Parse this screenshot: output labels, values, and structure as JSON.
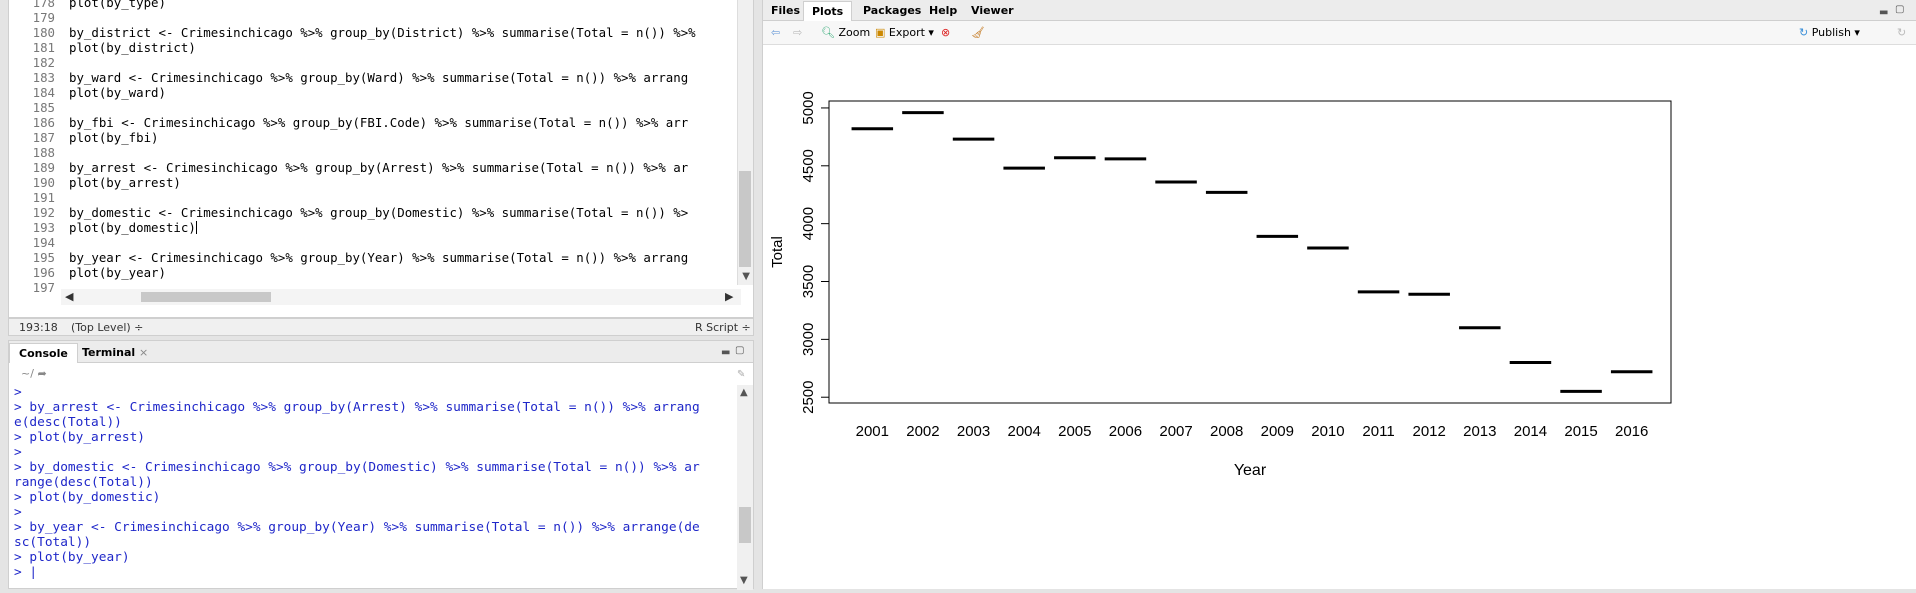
{
  "editor": {
    "line_numbers": [
      "178",
      "179",
      "180",
      "181",
      "182",
      "183",
      "184",
      "185",
      "186",
      "187",
      "188",
      "189",
      "190",
      "191",
      "192",
      "193",
      "194",
      "195",
      "196",
      "197"
    ],
    "lines": [
      "plot(by_type)",
      "",
      "by_district <- Crimesinchicago %>% group_by(District) %>% summarise(Total = n()) %>%",
      "plot(by_district)",
      "",
      "by_ward <- Crimesinchicago %>% group_by(Ward) %>% summarise(Total = n()) %>% arrang",
      "plot(by_ward)",
      "",
      "by_fbi <- Crimesinchicago %>% group_by(FBI.Code) %>% summarise(Total = n()) %>% arr",
      "plot(by_fbi)",
      "",
      "by_arrest <- Crimesinchicago %>% group_by(Arrest) %>% summarise(Total = n()) %>% ar",
      "plot(by_arrest)",
      "",
      "by_domestic <- Crimesinchicago %>% group_by(Domestic) %>% summarise(Total = n()) %>",
      "plot(by_domestic)",
      "",
      "by_year <- Crimesinchicago %>% group_by(Year) %>% summarise(Total = n()) %>% arrang",
      "plot(by_year)",
      ""
    ],
    "status_position": "193:18",
    "status_scope": "(Top Level) ÷",
    "status_filetype": "R Script ÷"
  },
  "console": {
    "tabs": [
      "Console",
      "Terminal"
    ],
    "path": "~/",
    "lines": [
      ">",
      "> by_arrest <- Crimesinchicago %>% group_by(Arrest) %>% summarise(Total = n()) %>% arrang",
      "e(desc(Total))",
      "> plot(by_arrest)",
      ">",
      "> by_domestic <- Crimesinchicago %>% group_by(Domestic) %>% summarise(Total = n()) %>% ar",
      "range(desc(Total))",
      "> plot(by_domestic)",
      ">",
      "> by_year <- Crimesinchicago %>% group_by(Year) %>% summarise(Total = n()) %>% arrange(de",
      "sc(Total))",
      "> plot(by_year)",
      "> |"
    ]
  },
  "viewer": {
    "tabs": [
      "Files",
      "Plots",
      "Packages",
      "Help",
      "Viewer"
    ],
    "active_tab": "Plots",
    "zoom_label": "Zoom",
    "export_label": "Export ▾",
    "publish_label": "Publish ▾"
  },
  "chart_data": {
    "type": "scatter",
    "xlabel": "Year",
    "ylabel": "Total",
    "categories": [
      "2001",
      "2002",
      "2003",
      "2004",
      "2005",
      "2006",
      "2007",
      "2008",
      "2009",
      "2010",
      "2011",
      "2012",
      "2013",
      "2014",
      "2015",
      "2016"
    ],
    "values": [
      4820,
      4960,
      4730,
      4480,
      4570,
      4560,
      4360,
      4270,
      3890,
      3790,
      3410,
      3390,
      3100,
      2800,
      2550,
      2720
    ],
    "y_ticks": [
      2500,
      3000,
      3500,
      4000,
      4500,
      5000
    ],
    "ylim": [
      2450,
      5060
    ],
    "grid": false
  },
  "colors": {
    "console_text": "#1f27c9",
    "plot_ink": "#000000"
  }
}
